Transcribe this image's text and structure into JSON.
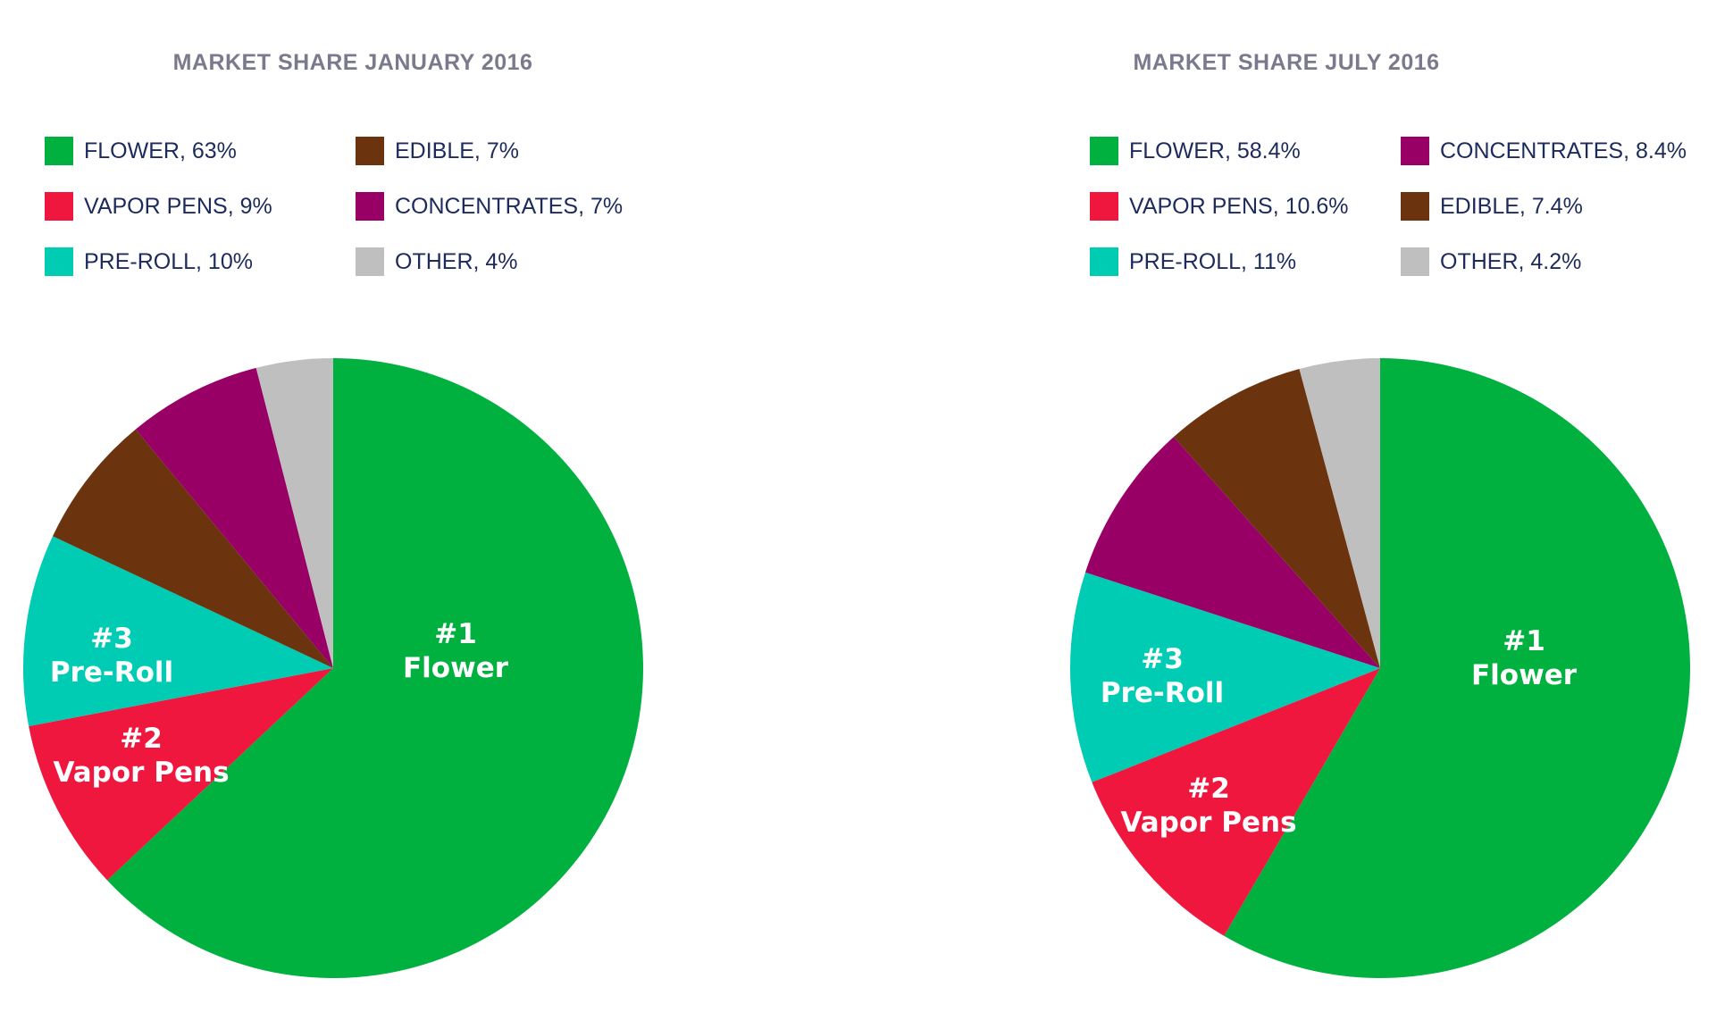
{
  "chart_data": [
    {
      "type": "pie",
      "title": "MARKET SHARE JANUARY 2016",
      "slices": [
        {
          "name": "FLOWER",
          "value": 63,
          "legend": "FLOWER, 63%",
          "color": "#00b140",
          "rank": "#1",
          "label": "Flower"
        },
        {
          "name": "VAPOR PENS",
          "value": 9,
          "legend": "VAPOR PENS, 9%",
          "color": "#f0173f",
          "rank": "#2",
          "label": "Vapor Pens"
        },
        {
          "name": "PRE-ROLL",
          "value": 10,
          "legend": "PRE-ROLL, 10%",
          "color": "#00ccb4",
          "rank": "#3",
          "label": "Pre-Roll"
        },
        {
          "name": "EDIBLE",
          "value": 7,
          "legend": "EDIBLE, 7%",
          "color": "#6b340f",
          "rank": "",
          "label": ""
        },
        {
          "name": "CONCENTRATES",
          "value": 7,
          "legend": "CONCENTRATES, 7%",
          "color": "#990066",
          "rank": "",
          "label": ""
        },
        {
          "name": "OTHER",
          "value": 4,
          "legend": "OTHER, 4%",
          "color": "#bfbfbf",
          "rank": "",
          "label": ""
        }
      ]
    },
    {
      "type": "pie",
      "title": "MARKET SHARE JULY 2016",
      "slices": [
        {
          "name": "FLOWER",
          "value": 58.4,
          "legend": "FLOWER, 58.4%",
          "color": "#00b140",
          "rank": "#1",
          "label": "Flower"
        },
        {
          "name": "VAPOR PENS",
          "value": 10.6,
          "legend": "VAPOR PENS, 10.6%",
          "color": "#f0173f",
          "rank": "#2",
          "label": "Vapor Pens"
        },
        {
          "name": "PRE-ROLL",
          "value": 11,
          "legend": "PRE-ROLL, 11%",
          "color": "#00ccb4",
          "rank": "#3",
          "label": "Pre-Roll"
        },
        {
          "name": "CONCENTRATES",
          "value": 8.4,
          "legend": "CONCENTRATES, 8.4%",
          "color": "#990066",
          "rank": "",
          "label": ""
        },
        {
          "name": "EDIBLE",
          "value": 7.4,
          "legend": "EDIBLE, 7.4%",
          "color": "#6b340f",
          "rank": "",
          "label": ""
        },
        {
          "name": "OTHER",
          "value": 4.2,
          "legend": "OTHER, 4.2%",
          "color": "#bfbfbf",
          "rank": "",
          "label": ""
        }
      ]
    }
  ]
}
